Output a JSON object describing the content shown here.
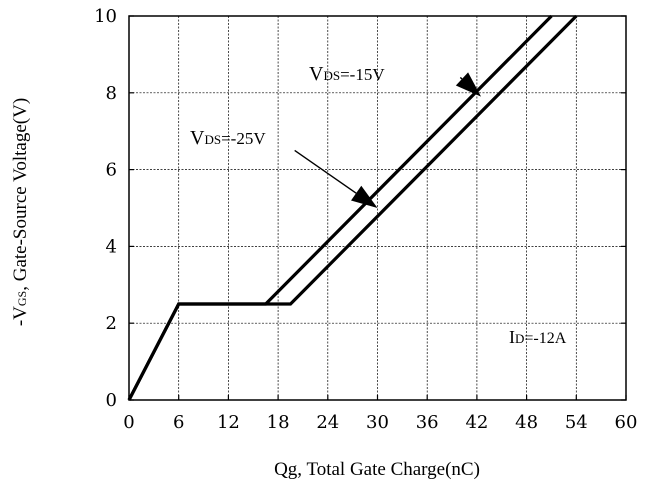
{
  "chart_data": {
    "type": "line",
    "xlabel": "Qg, Total Gate Charge(nC)",
    "ylabel": "-VGS, Gate-Source Voltage(V)",
    "xlim": [
      0,
      60
    ],
    "ylim": [
      0,
      10
    ],
    "x_ticks": [
      0,
      6,
      12,
      18,
      24,
      30,
      36,
      42,
      48,
      54,
      60
    ],
    "y_ticks": [
      0,
      2,
      4,
      6,
      8,
      10
    ],
    "grid": true,
    "series": [
      {
        "name": "VDS=-15V",
        "x": [
          0,
          6,
          16.5,
          51
        ],
        "y": [
          0,
          2.5,
          2.5,
          10
        ]
      },
      {
        "name": "VDS=-25V",
        "x": [
          0,
          6,
          19.5,
          54
        ],
        "y": [
          0,
          2.5,
          2.5,
          10
        ]
      }
    ],
    "annotations": [
      {
        "id": "vds15",
        "main": "V",
        "sub": "DS",
        "rest": "=-15V",
        "arrow_tail": [
          40,
          8.4
        ],
        "arrow_head": [
          42.5,
          7.9
        ]
      },
      {
        "id": "vds25",
        "main": "V",
        "sub": "DS",
        "rest": "=-25V",
        "arrow_tail": [
          20,
          6.5
        ],
        "arrow_head": [
          30,
          5.0
        ]
      },
      {
        "id": "id",
        "main": "I",
        "sub": "D",
        "rest": "=-12A"
      }
    ]
  }
}
